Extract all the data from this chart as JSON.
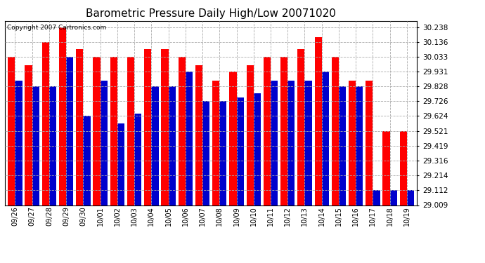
{
  "title": "Barometric Pressure Daily High/Low 20071020",
  "copyright": "Copyright 2007 Cartronics.com",
  "labels": [
    "09/26",
    "09/27",
    "09/28",
    "09/29",
    "09/30",
    "10/01",
    "10/02",
    "10/03",
    "10/04",
    "10/05",
    "10/06",
    "10/07",
    "10/08",
    "10/09",
    "10/10",
    "10/11",
    "10/12",
    "10/13",
    "10/14",
    "10/15",
    "10/16",
    "10/17",
    "10/18",
    "10/19"
  ],
  "highs": [
    30.033,
    29.975,
    30.136,
    30.238,
    30.085,
    30.033,
    30.033,
    30.033,
    30.085,
    30.085,
    30.033,
    29.975,
    29.87,
    29.931,
    29.975,
    30.033,
    30.033,
    30.085,
    30.17,
    30.033,
    29.87,
    29.87,
    29.521,
    29.521
  ],
  "lows": [
    29.87,
    29.828,
    29.828,
    30.033,
    29.624,
    29.87,
    29.575,
    29.64,
    29.828,
    29.828,
    29.931,
    29.726,
    29.726,
    29.75,
    29.78,
    29.87,
    29.87,
    29.87,
    29.931,
    29.828,
    29.828,
    29.112,
    29.112,
    29.112
  ],
  "high_color": "#ff0000",
  "low_color": "#0000cc",
  "bg_color": "#ffffff",
  "grid_color": "#aaaaaa",
  "title_fontsize": 11,
  "yticks": [
    29.009,
    29.112,
    29.214,
    29.316,
    29.419,
    29.521,
    29.624,
    29.726,
    29.828,
    29.931,
    30.033,
    30.136,
    30.238
  ],
  "ymin": 29.009,
  "ymax": 30.28
}
